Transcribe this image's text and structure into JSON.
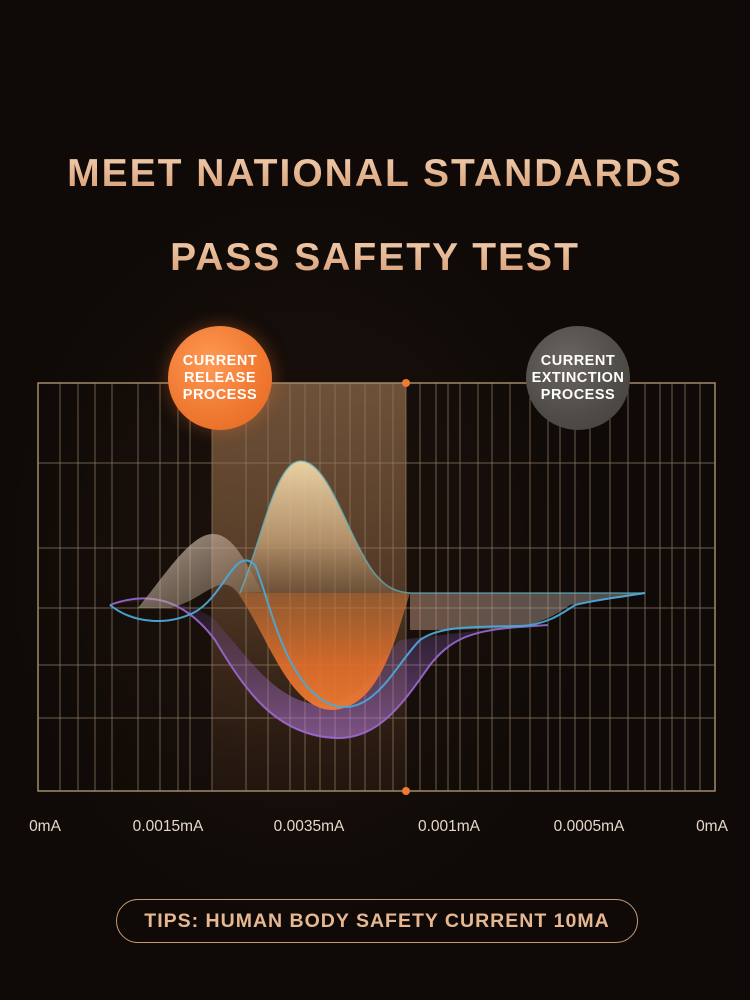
{
  "headline": {
    "line1": "MEET NATIONAL STANDARDS",
    "line2": "PASS SAFETY TEST"
  },
  "badges": {
    "release": {
      "line1": "CURRENT",
      "line2": "RELEASE",
      "line3": "PROCESS",
      "color": "#f07a32"
    },
    "extinction": {
      "line1": "CURRENT",
      "line2": "EXTINCTION",
      "line3": "PROCESS",
      "color": "#4f4b47"
    }
  },
  "chart_data": {
    "type": "area",
    "title": "",
    "xlabel": "",
    "ylabel": "",
    "x_tick_labels": [
      "0mA",
      "0.0015mA",
      "0.0035mA",
      "0.001mA",
      "0.0005mA",
      "0mA"
    ],
    "grid": true,
    "legend": "none",
    "highlighted_region": {
      "from_tick": 1,
      "to_tick": 3,
      "color": "#c9a071"
    },
    "series": [
      {
        "color": "#d9bd8c",
        "fill": "#e6c79a"
      },
      {
        "color": "#4aa8d8",
        "fill": "#e07a3a"
      },
      {
        "color": "#9a6ad0",
        "fill": "#b07ad8"
      }
    ]
  },
  "tips": "TIPS: HUMAN BODY SAFETY CURRENT 10MA"
}
